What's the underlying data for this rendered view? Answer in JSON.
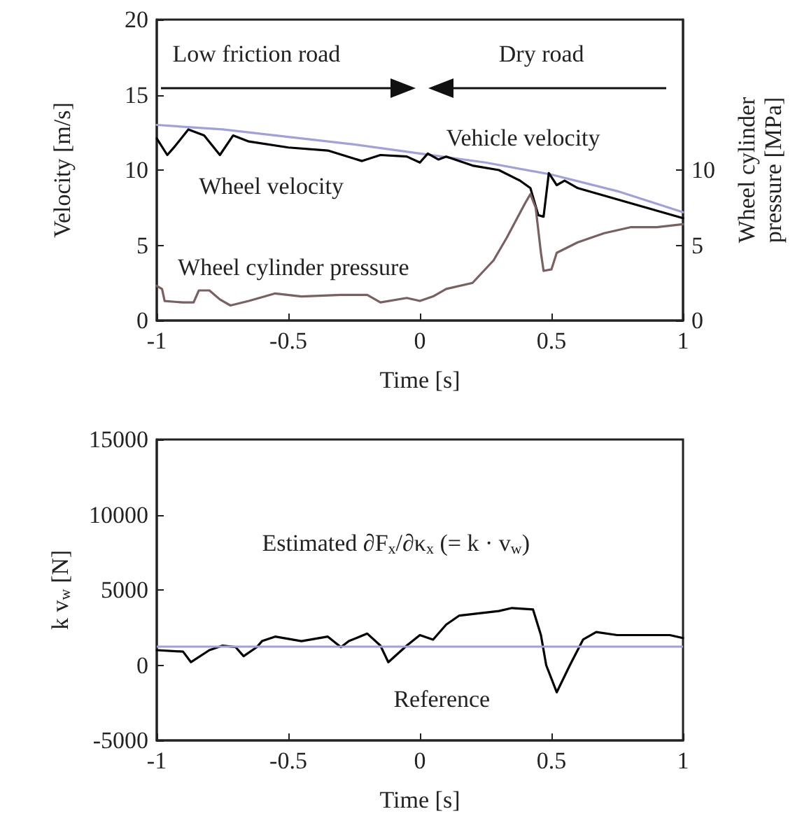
{
  "chart_data": [
    {
      "type": "line",
      "xlabel": "Time [s]",
      "ylabel": "Velocity [m/s]",
      "y2label": "Wheel cylinder pressure [MPa]",
      "xlim": [
        -1,
        1
      ],
      "xticks": [
        -1,
        -0.5,
        0,
        0.5,
        1
      ],
      "ylim": [
        0,
        20
      ],
      "yticks": [
        0,
        5,
        10,
        15,
        20
      ],
      "y2lim": [
        0,
        20
      ],
      "y2ticks": [
        0,
        5,
        10
      ],
      "grid": false,
      "legend": false,
      "marker": "none",
      "line_style": "solid",
      "annotations": [
        "Low friction road",
        "Dry road"
      ],
      "series": [
        {
          "name": "Vehicle velocity",
          "color": "#a0a0dc",
          "x": [
            -1,
            -0.75,
            -0.5,
            -0.25,
            0,
            0.25,
            0.5,
            0.75,
            1
          ],
          "values": [
            13.0,
            12.7,
            12.2,
            11.7,
            11.1,
            10.5,
            9.7,
            8.6,
            7.2
          ]
        },
        {
          "name": "Wheel velocity",
          "color": "#000000",
          "x": [
            -1,
            -0.96,
            -0.93,
            -0.88,
            -0.82,
            -0.76,
            -0.71,
            -0.65,
            -0.5,
            -0.35,
            -0.22,
            -0.15,
            -0.05,
            0,
            0.03,
            0.07,
            0.1,
            0.2,
            0.3,
            0.38,
            0.42,
            0.45,
            0.47,
            0.49,
            0.52,
            0.55,
            0.6,
            0.7,
            0.8,
            0.9,
            1
          ],
          "values": [
            12.1,
            11.0,
            11.6,
            12.7,
            12.3,
            11.0,
            12.3,
            11.9,
            11.5,
            11.3,
            10.6,
            11.0,
            10.9,
            10.5,
            11.1,
            10.7,
            10.9,
            10.3,
            10.0,
            9.3,
            8.8,
            7.0,
            6.9,
            9.8,
            9.0,
            9.3,
            8.8,
            8.3,
            7.8,
            7.3,
            6.8
          ]
        },
        {
          "name": "Wheel cylinder pressure",
          "color": "#7a6060",
          "x": [
            -1,
            -0.98,
            -0.97,
            -0.9,
            -0.86,
            -0.84,
            -0.8,
            -0.76,
            -0.72,
            -0.65,
            -0.55,
            -0.45,
            -0.3,
            -0.2,
            -0.15,
            -0.05,
            0,
            0.05,
            0.1,
            0.2,
            0.28,
            0.33,
            0.4,
            0.42,
            0.44,
            0.46,
            0.47,
            0.5,
            0.52,
            0.6,
            0.7,
            0.8,
            0.9,
            1
          ],
          "values": [
            2.3,
            2.1,
            1.3,
            1.2,
            1.2,
            2.0,
            2.0,
            1.4,
            1.0,
            1.3,
            1.8,
            1.6,
            1.7,
            1.7,
            1.2,
            1.5,
            1.3,
            1.6,
            2.1,
            2.5,
            4.0,
            5.5,
            7.8,
            8.4,
            7.5,
            4.5,
            3.3,
            3.4,
            4.5,
            5.2,
            5.8,
            6.2,
            6.2,
            6.4
          ]
        }
      ]
    },
    {
      "type": "line",
      "xlabel": "Time [s]",
      "ylabel": "k v$_{w}$ [N]",
      "xlim": [
        -1,
        1
      ],
      "xticks": [
        -1,
        -0.5,
        0,
        0.5,
        1
      ],
      "ylim": [
        -5000,
        15000
      ],
      "yticks": [
        -5000,
        0,
        5000,
        10000,
        15000
      ],
      "grid": false,
      "legend": false,
      "marker": "none",
      "line_style": "solid",
      "ref_lines": [
        {
          "axis": "y",
          "value": 1300,
          "label": "Reference",
          "color": "#a0a0dc"
        }
      ],
      "series": [
        {
          "name": "Estimated ∂F$_{x}$/∂κ$_{x}$ (= k · v$_{w}$)",
          "color": "#000000",
          "x": [
            -1,
            -0.9,
            -0.87,
            -0.8,
            -0.75,
            -0.7,
            -0.67,
            -0.62,
            -0.6,
            -0.55,
            -0.45,
            -0.35,
            -0.3,
            -0.27,
            -0.2,
            -0.15,
            -0.12,
            -0.05,
            0,
            0.05,
            0.1,
            0.15,
            0.3,
            0.35,
            0.43,
            0.46,
            0.48,
            0.52,
            0.57,
            0.62,
            0.67,
            0.75,
            0.95,
            1
          ],
          "values": [
            1000,
            900,
            200,
            1000,
            1300,
            1200,
            600,
            1200,
            1600,
            1900,
            1600,
            1900,
            1200,
            1600,
            2100,
            1300,
            200,
            1300,
            2000,
            1700,
            2700,
            3300,
            3600,
            3800,
            3700,
            2000,
            0,
            -1800,
            0,
            1700,
            2200,
            2000,
            2000,
            1800
          ]
        }
      ]
    }
  ]
}
